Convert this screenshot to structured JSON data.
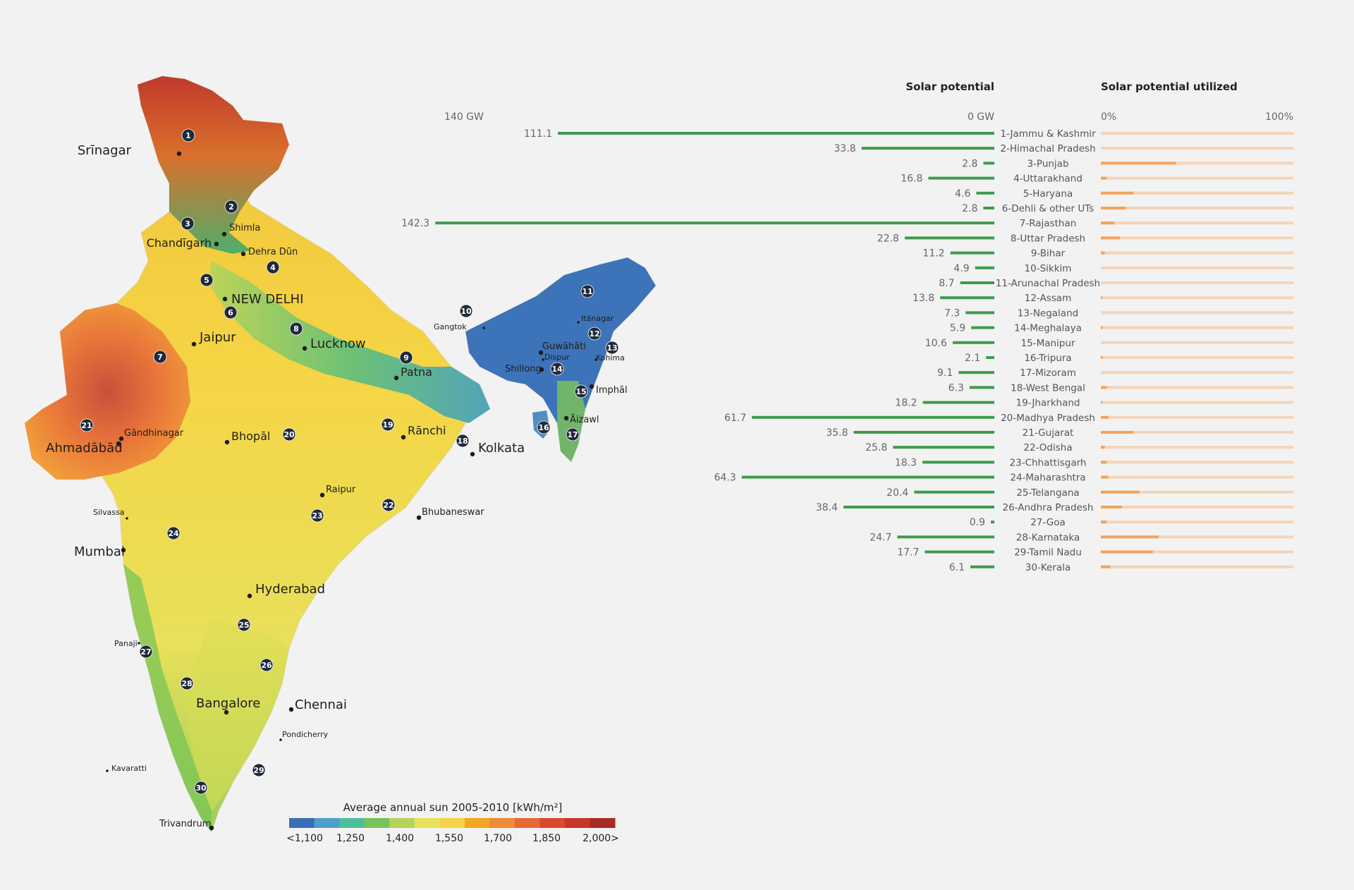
{
  "chart_data": {
    "type": "bar",
    "orientation": "horizontal",
    "left_panel": {
      "title": "Solar potential",
      "axis_left_label": "140 GW",
      "axis_right_label": "0 GW",
      "xlim": [
        0,
        140
      ],
      "unit": "GW",
      "color": "#3d9b4a"
    },
    "right_panel": {
      "title": "Solar potential utilized",
      "axis_left_label": "0%",
      "axis_right_label": "100%",
      "xlim": [
        0,
        100
      ],
      "unit": "%",
      "bar_color": "#f0a45c",
      "track_color": "#f6d3b6"
    },
    "categories": [
      "1-Jammu & Kashmir",
      "2-Himachal Pradesh",
      "3-Punjab",
      "4-Uttarakhand",
      "5-Haryana",
      "6-Dehli & other UTs",
      "7-Rajasthan",
      "8-Uttar Pradesh",
      "9-Bihar",
      "10-Sikkim",
      "11-Arunachal Pradesh",
      "12-Assam",
      "13-Negaland",
      "14-Meghalaya",
      "15-Manipur",
      "16-Tripura",
      "17-Mizoram",
      "18-West Bengal",
      "19-Jharkhand",
      "20-Madhya Pradesh",
      "21-Gujarat",
      "22-Odisha",
      "23-Chhattisgarh",
      "24-Maharashtra",
      "25-Telangana",
      "26-Andhra Pradesh",
      "27-Goa",
      "28-Karnataka",
      "29-Tamil Nadu",
      "30-Kerala"
    ],
    "potential_labels": [
      "111.1",
      "33.8",
      "2.8",
      "16.8",
      "4.6",
      "2.8",
      "142.3",
      "22.8",
      "11.2",
      "4.9",
      "8.7",
      "13.8",
      "7.3",
      "5.9",
      "10.6",
      "2.1",
      "9.1",
      "6.3",
      "18.2",
      "61.7",
      "35.8",
      "25.8",
      "18.3",
      "64.3",
      "20.4",
      "38.4",
      "0.9",
      "24.7",
      "17.7",
      "6.1"
    ],
    "series": [
      {
        "name": "Solar potential",
        "values": [
          111.1,
          33.8,
          2.8,
          16.8,
          4.6,
          2.8,
          142.3,
          22.8,
          11.2,
          4.9,
          8.7,
          13.8,
          7.3,
          5.9,
          10.6,
          2.1,
          9.1,
          6.3,
          18.2,
          61.7,
          35.8,
          25.8,
          18.3,
          64.3,
          20.4,
          38.4,
          0.9,
          24.7,
          17.7,
          6.1
        ]
      },
      {
        "name": "Solar potential utilized",
        "values": [
          0,
          0,
          39,
          3,
          17,
          13,
          7,
          10,
          2,
          0,
          0,
          0.5,
          0,
          1,
          0,
          1,
          0,
          3,
          0.5,
          4,
          17,
          2,
          3,
          4,
          20,
          11,
          3,
          30,
          27,
          5
        ]
      }
    ]
  },
  "map": {
    "legend": {
      "title": "Average annual sun 2005-2010 [kWh/m²]",
      "tick_labels": [
        "<1,100",
        "1,250",
        "1,400",
        "1,550",
        "1,700",
        "1,850",
        "2,000>"
      ],
      "colors": [
        "#3a6fb7",
        "#4f9fc8",
        "#4bbf9a",
        "#79c35a",
        "#b6d45a",
        "#e6e25c",
        "#f6d24a",
        "#f5a623",
        "#ee8a3a",
        "#e56a36",
        "#d94a2e",
        "#c9362a",
        "#a82b22"
      ]
    },
    "cities": [
      {
        "name": "Srīnagar",
        "size": "lg"
      },
      {
        "name": "Shimla",
        "size": "sm"
      },
      {
        "name": "Chandīgarh",
        "size": "md"
      },
      {
        "name": "Dehra Dūn",
        "size": "sm"
      },
      {
        "name": "NEW DELHI",
        "size": "lg"
      },
      {
        "name": "Jaipur",
        "size": "lg"
      },
      {
        "name": "Lucknow",
        "size": "lg"
      },
      {
        "name": "Patna",
        "size": "md"
      },
      {
        "name": "Gāndhinagar",
        "size": "sm"
      },
      {
        "name": "Ahmadābād",
        "size": "lg"
      },
      {
        "name": "Bhopāl",
        "size": "md"
      },
      {
        "name": "Rānchi",
        "size": "md"
      },
      {
        "name": "Kolkata",
        "size": "lg"
      },
      {
        "name": "Raipur",
        "size": "sm"
      },
      {
        "name": "Bhubaneswar",
        "size": "sm"
      },
      {
        "name": "Silvassa",
        "size": "xs"
      },
      {
        "name": "Mumbai",
        "size": "lg"
      },
      {
        "name": "Hyderabad",
        "size": "lg"
      },
      {
        "name": "Panaji",
        "size": "xs"
      },
      {
        "name": "Bangalore",
        "size": "lg"
      },
      {
        "name": "Chennai",
        "size": "lg"
      },
      {
        "name": "Pondicherry",
        "size": "xs"
      },
      {
        "name": "Kavaratti",
        "size": "xs"
      },
      {
        "name": "Trivandrum",
        "size": "sm"
      },
      {
        "name": "Gangtok",
        "size": "xs"
      },
      {
        "name": "Itānagar",
        "size": "xs"
      },
      {
        "name": "Guwāhāti",
        "size": "sm"
      },
      {
        "name": "Dispur",
        "size": "xs"
      },
      {
        "name": "Kohima",
        "size": "xs"
      },
      {
        "name": "Shillong",
        "size": "sm"
      },
      {
        "name": "Imphāl",
        "size": "sm"
      },
      {
        "name": "Āizawl",
        "size": "sm"
      }
    ],
    "state_markers": [
      "1",
      "2",
      "3",
      "4",
      "5",
      "6",
      "7",
      "8",
      "9",
      "10",
      "11",
      "12",
      "13",
      "14",
      "15",
      "16",
      "17",
      "18",
      "19",
      "20",
      "21",
      "22",
      "23",
      "24",
      "25",
      "26",
      "27",
      "28",
      "29",
      "30"
    ]
  }
}
